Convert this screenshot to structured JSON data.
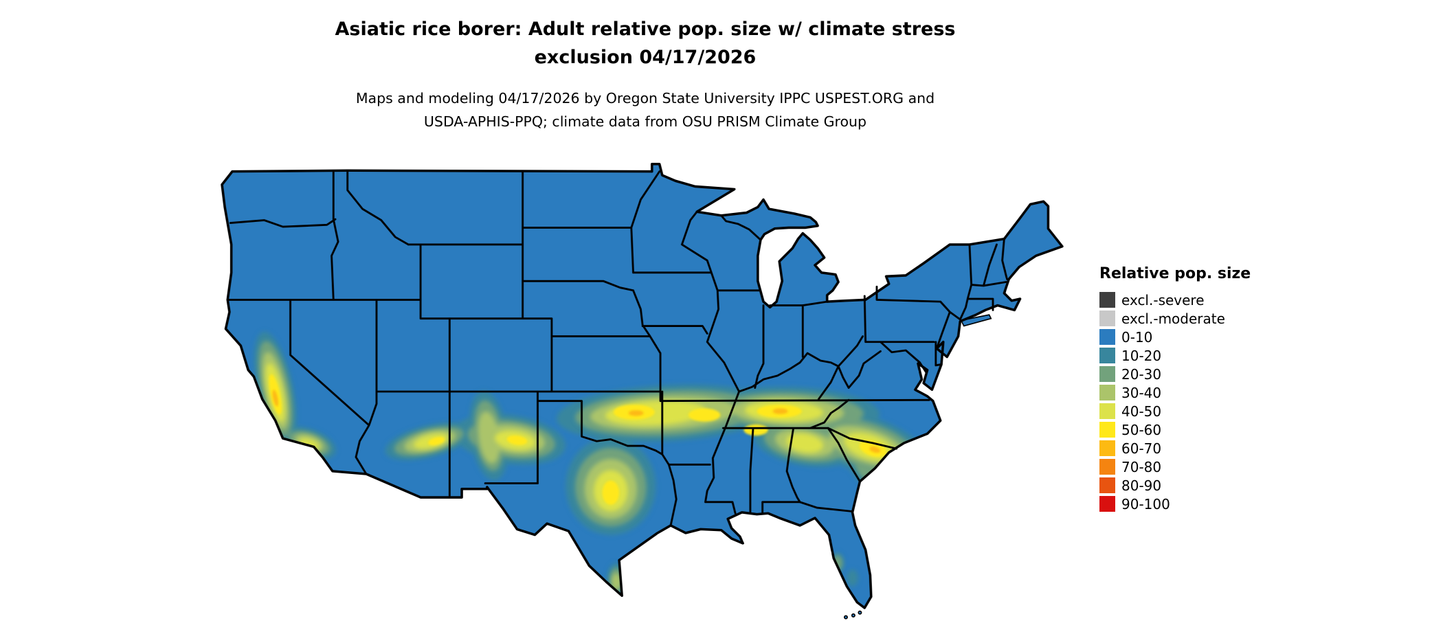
{
  "title": {
    "line1": "Asiatic rice borer: Adult relative pop. size w/ climate stress",
    "line2": "exclusion 04/17/2026"
  },
  "subtitle": {
    "line1": "Maps and modeling 04/17/2026 by Oregon State University IPPC USPEST.ORG and",
    "line2": "USDA-APHIS-PPQ; climate data from OSU PRISM Climate Group"
  },
  "legend": {
    "title": "Relative pop. size",
    "items": [
      {
        "label": "excl.-severe",
        "color": "#3f3f3f"
      },
      {
        "label": "excl.-moderate",
        "color": "#c8c8c8"
      },
      {
        "label": "0-10",
        "color": "#2b7cbf"
      },
      {
        "label": "10-20",
        "color": "#38869d"
      },
      {
        "label": "20-30",
        "color": "#72a27c"
      },
      {
        "label": "30-40",
        "color": "#abc46a"
      },
      {
        "label": "40-50",
        "color": "#dce24a"
      },
      {
        "label": "50-60",
        "color": "#ffe81a"
      },
      {
        "label": "60-70",
        "color": "#fdba12"
      },
      {
        "label": "70-80",
        "color": "#f58410"
      },
      {
        "label": "80-90",
        "color": "#e85410"
      },
      {
        "label": "90-100",
        "color": "#d9100f"
      }
    ]
  },
  "chart_data": {
    "type": "choropleth_map",
    "region": "Contiguous United States",
    "variable": "Relative pop. size",
    "date_shown": "04/17/2026",
    "classes": [
      "excl.-severe",
      "excl.-moderate",
      "0-10",
      "10-20",
      "20-30",
      "30-40",
      "40-50",
      "50-60",
      "60-70",
      "70-80",
      "80-90",
      "90-100"
    ],
    "dominant_class": "0-10",
    "elevated_regions": [
      "California Central Valley and foothills",
      "Central Arizona highlands",
      "Central New Mexico",
      "West and Central Texas",
      "Southern Plains: Oklahoma, Arkansas, southern Missouri",
      "Mid-South: Tennessee, northern Mississippi and Alabama, Kentucky fringe",
      "Carolinas and Georgia Piedmont",
      "South Texas tip",
      "Scattered spots in Florida"
    ]
  }
}
